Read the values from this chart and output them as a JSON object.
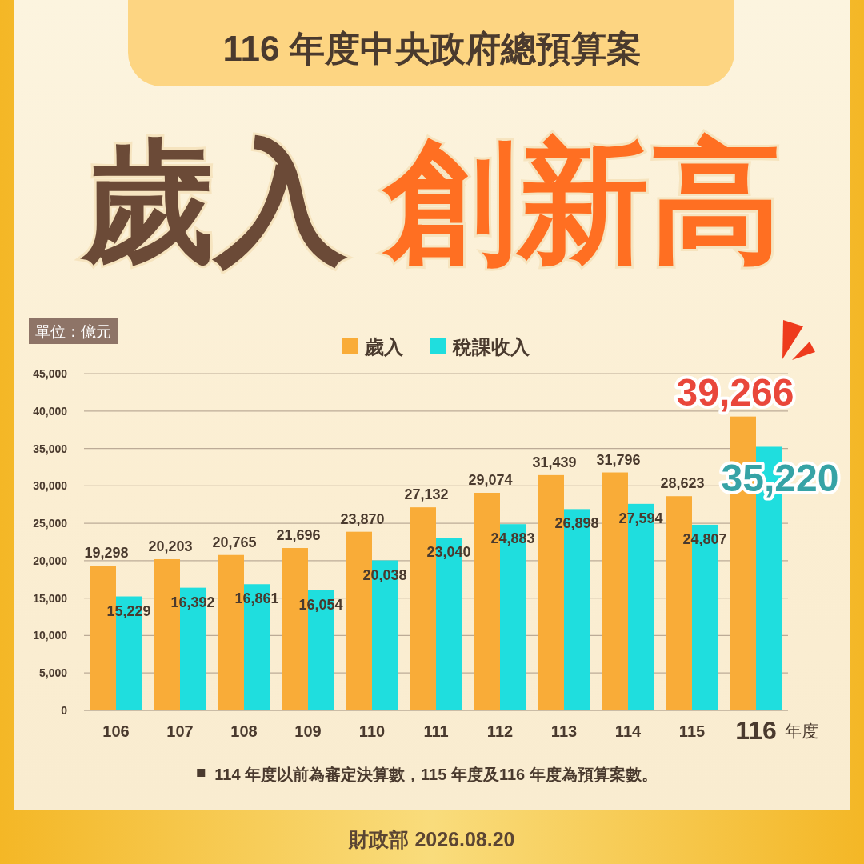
{
  "chart_data": {
    "type": "bar",
    "title": "116 年度中央政府總預算案",
    "subtitle": "歲入 創新高",
    "ylabel": "單位：億元",
    "xlabel": "年度",
    "categories": [
      "106",
      "107",
      "108",
      "109",
      "110",
      "111",
      "112",
      "113",
      "114",
      "115",
      "116"
    ],
    "series": [
      {
        "name": "歲入",
        "color": "#f9ac38",
        "values": [
          19298,
          20203,
          20765,
          21696,
          23870,
          27132,
          29074,
          31439,
          31796,
          28623,
          39266
        ],
        "value_labels": [
          "19,298",
          "20,203",
          "20,765",
          "21,696",
          "23,870",
          "27,132",
          "29,074",
          "31,439",
          "31,796",
          "28,623",
          "39,266"
        ]
      },
      {
        "name": "稅課收入",
        "color": "#1fdede",
        "values": [
          15229,
          16392,
          16861,
          16054,
          20038,
          23040,
          24883,
          26898,
          27594,
          24807,
          35220
        ],
        "value_labels": [
          "15,229",
          "16,392",
          "16,861",
          "16,054",
          "20,038",
          "23,040",
          "24,883",
          "26,898",
          "27,594",
          "24,807",
          "35,220"
        ]
      }
    ],
    "ylim": [
      0,
      45000
    ],
    "yticks": [
      0,
      {
        "value": 5000,
        "label": "5,000"
      },
      {
        "value": 10000,
        "label": "10,000"
      },
      {
        "value": 15000,
        "label": "15,000"
      },
      {
        "value": 20000,
        "label": "20,000"
      },
      {
        "value": 25000,
        "label": "25,000"
      },
      {
        "value": 30000,
        "label": "30,000"
      },
      {
        "value": 35000,
        "label": "35,000"
      },
      {
        "value": 40000,
        "label": "40,000"
      },
      {
        "value": 45000,
        "label": "45,000"
      }
    ],
    "grid": "y",
    "legend": "top",
    "annotations": [
      "114 年度以前為審定決算數，115 年度及116 年度為預算案數。",
      "財政部 2026.08.20"
    ]
  }
}
